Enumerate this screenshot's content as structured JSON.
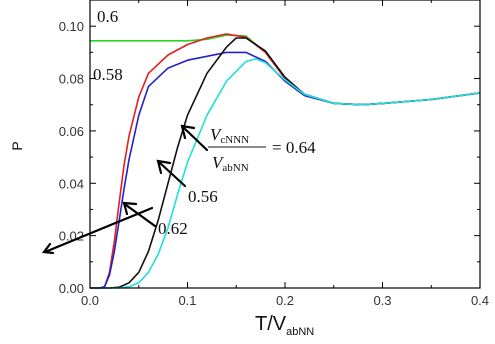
{
  "chart_data": {
    "type": "line",
    "xlabel": "T/V",
    "xlabel_sub": "abNN",
    "ylabel": "P",
    "xlim": [
      0,
      0.4
    ],
    "ylim": [
      0,
      0.11
    ],
    "xticks": [
      "0.0",
      "0.1",
      "0.2",
      "0.3",
      "0.4"
    ],
    "yticks": [
      "0.00",
      "0.02",
      "0.04",
      "0.06",
      "0.08",
      "0.10"
    ],
    "grid": false,
    "annotations": {
      "a06": "0.6",
      "a058": "0.58",
      "a056": "0.56",
      "a062": "0.62",
      "frac_num_main": "V",
      "frac_num_sub": "cNNN",
      "frac_den_main": "V",
      "frac_den_sub": "abNN",
      "frac_value": "= 0.64"
    },
    "series": [
      {
        "name": "0.6",
        "color": "#2ad22a",
        "x": [
          0.0,
          0.05,
          0.1,
          0.12,
          0.14,
          0.16,
          0.18,
          0.2,
          0.22,
          0.25,
          0.28,
          0.3,
          0.35,
          0.4
        ],
        "y": [
          0.0944,
          0.0944,
          0.0944,
          0.095,
          0.0966,
          0.0962,
          0.09,
          0.08,
          0.074,
          0.0705,
          0.07,
          0.0705,
          0.072,
          0.0745
        ]
      },
      {
        "name": "0.58",
        "color": "#e02020",
        "x": [
          0.0,
          0.01,
          0.015,
          0.02,
          0.025,
          0.03,
          0.035,
          0.04,
          0.05,
          0.06,
          0.08,
          0.1,
          0.12,
          0.14,
          0.16,
          0.18,
          0.2,
          0.22,
          0.25,
          0.28,
          0.3,
          0.35,
          0.4
        ],
        "y": [
          0.0,
          0.0,
          0.0005,
          0.006,
          0.018,
          0.033,
          0.047,
          0.058,
          0.073,
          0.082,
          0.089,
          0.093,
          0.0955,
          0.097,
          0.0958,
          0.09,
          0.08,
          0.074,
          0.0705,
          0.07,
          0.0705,
          0.072,
          0.0745
        ]
      },
      {
        "name": "0.62",
        "color": "#2222cc",
        "x": [
          0.0,
          0.01,
          0.015,
          0.02,
          0.025,
          0.03,
          0.035,
          0.04,
          0.05,
          0.06,
          0.08,
          0.1,
          0.12,
          0.14,
          0.16,
          0.18,
          0.2,
          0.22,
          0.25,
          0.28,
          0.3,
          0.35,
          0.4
        ],
        "y": [
          0.0,
          0.0,
          0.0005,
          0.005,
          0.014,
          0.026,
          0.038,
          0.049,
          0.066,
          0.077,
          0.084,
          0.087,
          0.0885,
          0.09,
          0.09,
          0.0865,
          0.079,
          0.0735,
          0.0705,
          0.07,
          0.0705,
          0.072,
          0.0745
        ]
      },
      {
        "name": "0.56",
        "color": "#111111",
        "x": [
          0.0,
          0.02,
          0.03,
          0.04,
          0.05,
          0.06,
          0.07,
          0.08,
          0.09,
          0.1,
          0.12,
          0.14,
          0.15,
          0.16,
          0.18,
          0.2,
          0.22,
          0.25,
          0.28,
          0.3,
          0.35,
          0.4
        ],
        "y": [
          0.0,
          0.0,
          0.0003,
          0.002,
          0.006,
          0.014,
          0.026,
          0.04,
          0.054,
          0.066,
          0.082,
          0.092,
          0.0955,
          0.0955,
          0.0905,
          0.0805,
          0.074,
          0.0705,
          0.07,
          0.0705,
          0.072,
          0.0745
        ]
      },
      {
        "name": "0.64",
        "color": "#22dddd",
        "x": [
          0.0,
          0.03,
          0.04,
          0.05,
          0.06,
          0.07,
          0.08,
          0.09,
          0.1,
          0.12,
          0.14,
          0.16,
          0.17,
          0.18,
          0.2,
          0.22,
          0.25,
          0.28,
          0.3,
          0.35,
          0.4
        ],
        "y": [
          0.0,
          0.0,
          0.0005,
          0.002,
          0.006,
          0.013,
          0.023,
          0.036,
          0.048,
          0.066,
          0.079,
          0.0865,
          0.0875,
          0.086,
          0.0795,
          0.074,
          0.0705,
          0.07,
          0.0705,
          0.072,
          0.0745
        ]
      }
    ]
  }
}
